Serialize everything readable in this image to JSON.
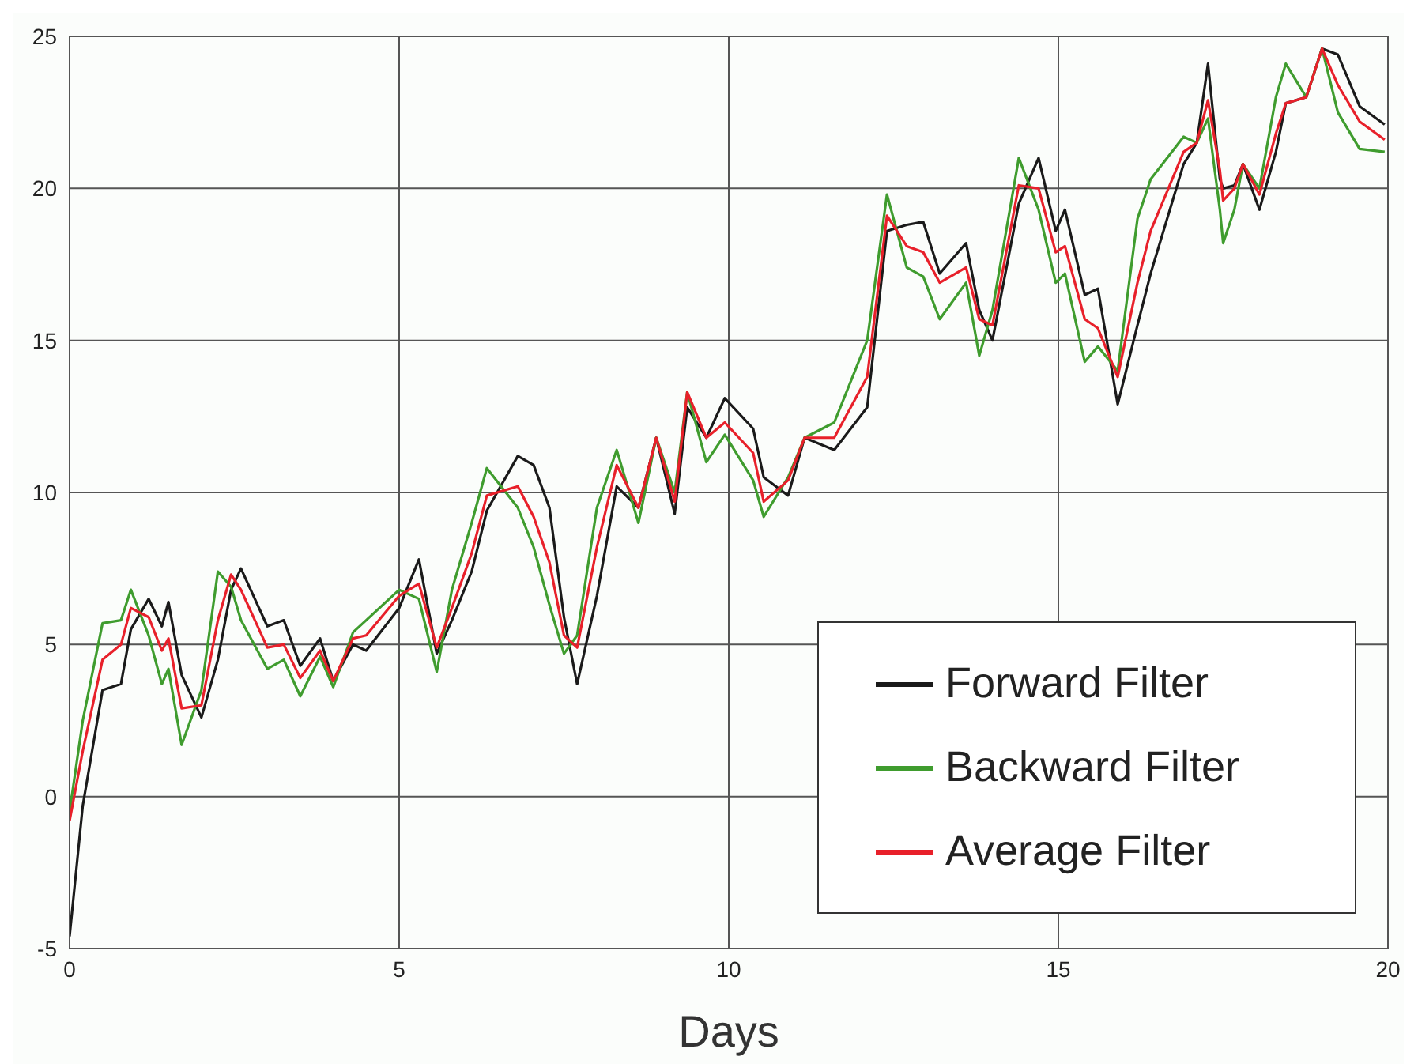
{
  "chart_data": {
    "type": "line",
    "xlabel": "Days",
    "x": [
      0,
      0.2,
      0.5,
      0.78,
      0.93,
      1.2,
      1.4,
      1.5,
      1.7,
      2.0,
      2.25,
      2.45,
      2.6,
      3.0,
      3.25,
      3.5,
      3.8,
      4.0,
      4.3,
      4.5,
      5.0,
      5.3,
      5.57,
      5.8,
      6.1,
      6.33,
      6.8,
      7.04,
      7.28,
      7.5,
      7.7,
      8.0,
      8.3,
      8.63,
      8.9,
      9.18,
      9.37,
      9.66,
      9.94,
      10.37,
      10.53,
      10.9,
      11.15,
      11.6,
      12.1,
      12.4,
      12.7,
      12.95,
      13.2,
      13.6,
      13.8,
      14.0,
      14.4,
      14.7,
      14.96,
      15.1,
      15.4,
      15.6,
      15.9,
      16.2,
      16.4,
      16.9,
      17.1,
      17.27,
      17.45,
      17.5,
      17.67,
      17.8,
      18.05,
      18.3,
      18.45,
      18.76,
      19.0,
      19.24,
      19.57,
      19.95
    ],
    "series": [
      {
        "name": "Forward Filter",
        "color": "#1a1a1a",
        "values": [
          -4.6,
          -0.3,
          3.5,
          3.7,
          5.5,
          6.5,
          5.6,
          6.4,
          4.0,
          2.6,
          4.5,
          6.8,
          7.5,
          5.6,
          5.8,
          4.3,
          5.2,
          3.8,
          5.0,
          4.8,
          6.2,
          7.8,
          4.7,
          5.8,
          7.4,
          9.4,
          11.2,
          10.9,
          9.5,
          5.9,
          3.7,
          6.6,
          10.2,
          9.5,
          11.8,
          9.3,
          12.8,
          11.8,
          13.1,
          12.1,
          10.5,
          9.9,
          11.8,
          11.4,
          12.8,
          18.6,
          18.8,
          18.9,
          17.2,
          18.2,
          16.0,
          15.0,
          19.5,
          21.0,
          18.6,
          19.3,
          16.5,
          16.7,
          12.9,
          15.5,
          17.2,
          20.8,
          21.5,
          24.1,
          20.3,
          20.0,
          20.1,
          20.8,
          19.3,
          21.2,
          22.8,
          23.0,
          24.6,
          24.4,
          22.7,
          22.1
        ]
      },
      {
        "name": "Backward Filter",
        "color": "#3f9c2e",
        "values": [
          -0.5,
          2.5,
          5.7,
          5.8,
          6.8,
          5.3,
          3.7,
          4.2,
          1.7,
          3.5,
          7.4,
          6.9,
          5.8,
          4.2,
          4.5,
          3.3,
          4.6,
          3.6,
          5.4,
          5.8,
          6.8,
          6.5,
          4.1,
          6.8,
          9.0,
          10.8,
          9.5,
          8.2,
          6.3,
          4.7,
          5.3,
          9.5,
          11.4,
          9.0,
          11.8,
          10.0,
          13.3,
          11.0,
          11.9,
          10.4,
          9.2,
          10.5,
          11.8,
          12.3,
          15.0,
          19.8,
          17.4,
          17.1,
          15.7,
          16.9,
          14.5,
          16.0,
          21.0,
          19.3,
          16.9,
          17.2,
          14.3,
          14.8,
          14.0,
          19.0,
          20.3,
          21.7,
          21.5,
          22.3,
          19.3,
          18.2,
          19.3,
          20.8,
          20.0,
          23.0,
          24.1,
          23.0,
          24.6,
          22.5,
          21.3,
          21.2
        ]
      },
      {
        "name": "Average Filter",
        "color": "#e8202a",
        "values": [
          -0.8,
          1.5,
          4.5,
          5.0,
          6.2,
          5.9,
          4.8,
          5.2,
          2.9,
          3.0,
          5.8,
          7.3,
          6.8,
          4.9,
          5.0,
          3.9,
          4.8,
          3.8,
          5.2,
          5.3,
          6.6,
          7.0,
          4.9,
          6.2,
          8.0,
          9.9,
          10.2,
          9.2,
          7.7,
          5.3,
          4.9,
          8.2,
          10.9,
          9.5,
          11.8,
          9.7,
          13.3,
          11.8,
          12.3,
          11.3,
          9.7,
          10.4,
          11.8,
          11.8,
          13.8,
          19.1,
          18.1,
          17.9,
          16.9,
          17.4,
          15.7,
          15.5,
          20.1,
          20.0,
          17.9,
          18.1,
          15.7,
          15.4,
          13.8,
          16.9,
          18.6,
          21.2,
          21.5,
          22.9,
          20.6,
          19.6,
          20.0,
          20.8,
          19.8,
          21.8,
          22.8,
          23.0,
          24.6,
          23.4,
          22.2,
          21.6
        ]
      }
    ],
    "xlim": [
      0,
      20
    ],
    "xticks": [
      0,
      5,
      10,
      15,
      20
    ],
    "ylim": [
      -5,
      25
    ],
    "yticks": [
      -5,
      0,
      5,
      10,
      15,
      20,
      25
    ],
    "grid": true,
    "legend": "bottom right",
    "line_style": "solid",
    "marker": "none"
  }
}
